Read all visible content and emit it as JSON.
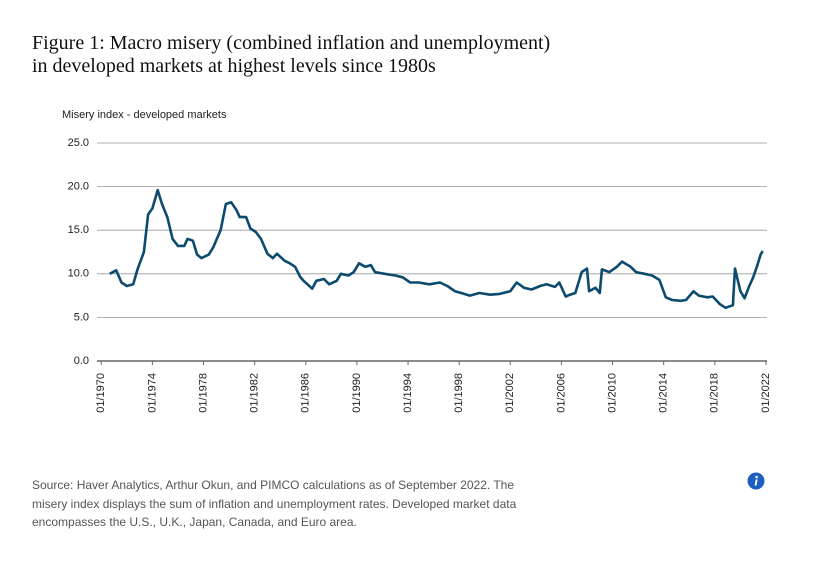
{
  "chart_data": {
    "type": "line",
    "title": "Figure 1: Macro misery (combined inflation and unemployment)\nin developed markets at highest levels since 1980s",
    "y_label": "Misery index - developed markets",
    "source": "Source: Haver Analytics, Arthur Okun, and PIMCO calculations as of September 2022. The misery index displays the sum of inflation and unemployment rates. Developed market data encompasses the U.S., U.K., Japan, Canada, and Euro area.",
    "grid": true,
    "xlim": [
      "09/1969",
      "02/2022"
    ],
    "xticks": [
      "01/1970",
      "01/1974",
      "01/1978",
      "01/1982",
      "01/1986",
      "01/1990",
      "01/1994",
      "01/1998",
      "01/2002",
      "01/2006",
      "01/2010",
      "01/2014",
      "01/2018",
      "01/2022"
    ],
    "ylim": [
      0,
      25
    ],
    "yticks": [
      {
        "value": 0,
        "label": "0.0"
      },
      {
        "value": 5,
        "label": "5.0"
      },
      {
        "value": 10,
        "label": "10.0"
      },
      {
        "value": 15,
        "label": "15.0"
      },
      {
        "value": 20,
        "label": "20.0"
      },
      {
        "value": 25,
        "label": "25.0"
      }
    ],
    "x": [
      "09/1970",
      "03/1971",
      "08/1971",
      "01/1972",
      "07/1972",
      "11/1972",
      "05/1973",
      "09/1973",
      "01/1974",
      "06/1974",
      "10/1974",
      "03/1975",
      "08/1975",
      "01/1976",
      "07/1976",
      "10/1976",
      "03/1977",
      "07/1977",
      "11/1977",
      "06/1978",
      "10/1978",
      "05/1979",
      "10/1979",
      "03/1980",
      "08/1980",
      "11/1980",
      "05/1981",
      "09/1981",
      "02/1982",
      "07/1982",
      "01/1983",
      "06/1983",
      "10/1983",
      "05/1984",
      "10/1984",
      "03/1985",
      "08/1985",
      "11/1985",
      "07/1986",
      "11/1986",
      "06/1987",
      "11/1987",
      "06/1988",
      "10/1988",
      "05/1989",
      "10/1989",
      "03/1990",
      "09/1990",
      "02/1991",
      "06/1991",
      "03/1992",
      "01/1993",
      "08/1993",
      "03/1994",
      "11/1994",
      "09/1995",
      "07/1996",
      "02/1997",
      "09/1997",
      "03/1998",
      "11/1998",
      "08/1999",
      "06/2000",
      "03/2001",
      "01/2002",
      "07/2002",
      "02/2003",
      "09/2003",
      "05/2004",
      "11/2004",
      "07/2005",
      "11/2005",
      "05/2006",
      "09/2006",
      "02/2007",
      "08/2007",
      "01/2008",
      "03/2008",
      "09/2008",
      "01/2009",
      "03/2009",
      "10/2009",
      "05/2010",
      "10/2010",
      "06/2011",
      "11/2011",
      "07/2012",
      "02/2013",
      "09/2013",
      "03/2014",
      "09/2014",
      "05/2015",
      "10/2015",
      "05/2016",
      "10/2016",
      "06/2017",
      "11/2017",
      "06/2018",
      "11/2018",
      "06/2019",
      "08/2019",
      "01/2020",
      "05/2020",
      "09/2020",
      "01/2021",
      "05/2021",
      "08/2021",
      "10/2021"
    ],
    "series": [
      {
        "name": "Misery index",
        "color": "#0c4a6e",
        "values": [
          10.0,
          10.4,
          9.0,
          8.6,
          8.8,
          10.5,
          12.5,
          16.8,
          17.5,
          19.6,
          18.0,
          16.5,
          14.0,
          13.2,
          13.2,
          14.0,
          13.8,
          12.2,
          11.8,
          12.2,
          13.0,
          15.0,
          18.0,
          18.2,
          17.3,
          16.5,
          16.5,
          15.2,
          14.8,
          14.0,
          12.3,
          11.8,
          12.3,
          11.5,
          11.2,
          10.8,
          9.6,
          9.2,
          8.3,
          9.2,
          9.4,
          8.8,
          9.2,
          10.0,
          9.8,
          10.2,
          11.2,
          10.8,
          11.0,
          10.2,
          10.0,
          9.8,
          9.6,
          9.0,
          9.0,
          8.8,
          9.0,
          8.6,
          8.0,
          7.8,
          7.5,
          7.8,
          7.6,
          7.7,
          8.0,
          9.0,
          8.4,
          8.2,
          8.6,
          8.8,
          8.5,
          9.0,
          7.4,
          7.6,
          7.8,
          10.2,
          10.6,
          8.0,
          8.4,
          7.8,
          10.5,
          10.2,
          10.8,
          11.4,
          10.8,
          10.2,
          10.0,
          9.8,
          9.3,
          7.3,
          7.0,
          6.9,
          7.0,
          8.0,
          7.5,
          7.3,
          7.4,
          6.5,
          6.1,
          6.4,
          10.6,
          8.0,
          7.2,
          8.5,
          9.6,
          11.0,
          12.2,
          12.6
        ]
      }
    ]
  }
}
